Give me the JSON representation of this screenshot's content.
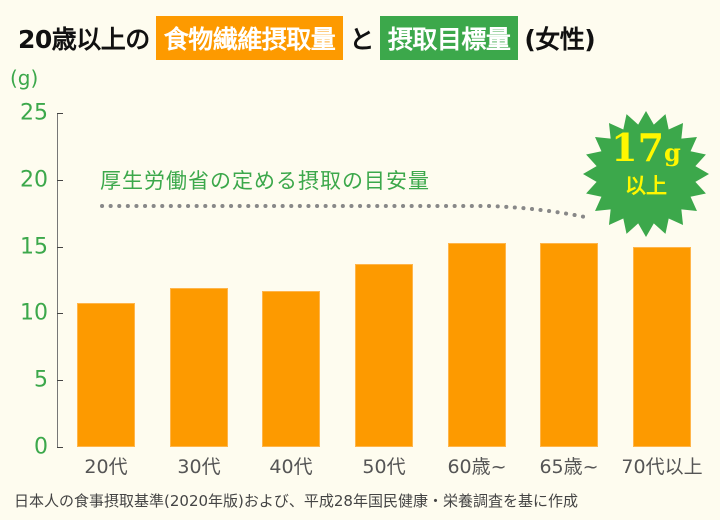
{
  "title": {
    "prefix": "20歳以上の",
    "highlight_orange": "食物繊維摂取量",
    "connector": "と",
    "highlight_green": "摂取目標量",
    "suffix": "(女性)"
  },
  "colors": {
    "bar": "#fd9a00",
    "accent_green": "#3ca84b",
    "badge_text": "#fff700",
    "background": "#fefcef",
    "ref_line": "#888888"
  },
  "axis": {
    "unit": "(g)",
    "ticks": [
      "25",
      "20",
      "15",
      "10",
      "5",
      "0"
    ]
  },
  "reference": {
    "label": "厚生労働省の定める摂取の目安量",
    "value": 17
  },
  "badge": {
    "number": "17",
    "unit": "g",
    "sub": "以上"
  },
  "categories": [
    "20代",
    "30代",
    "40代",
    "50代",
    "60歳~",
    "65歳~",
    "70代以上"
  ],
  "footer": "日本人の食事摂取基準(2020年版)および、平成28年国民健康・栄養調査を基に作成",
  "chart_data": {
    "type": "bar",
    "title": "20歳以上の食物繊維摂取量と摂取目標量(女性)",
    "xlabel": "",
    "ylabel": "(g)",
    "categories": [
      "20代",
      "30代",
      "40代",
      "50代",
      "60歳~",
      "65歳~",
      "70代以上"
    ],
    "values": [
      10.8,
      11.9,
      11.7,
      13.7,
      15.3,
      15.3,
      15.0
    ],
    "ylim": [
      0,
      25
    ],
    "yticks": [
      0,
      5,
      10,
      15,
      20,
      25
    ],
    "grid": false,
    "annotations": [
      {
        "text": "厚生労働省の定める摂取の目安量",
        "type": "reference-line",
        "y": 17
      },
      {
        "text": "17g以上",
        "type": "badge"
      }
    ],
    "source": "日本人の食事摂取基準(2020年版)および、平成28年国民健康・栄養調査を基に作成"
  }
}
